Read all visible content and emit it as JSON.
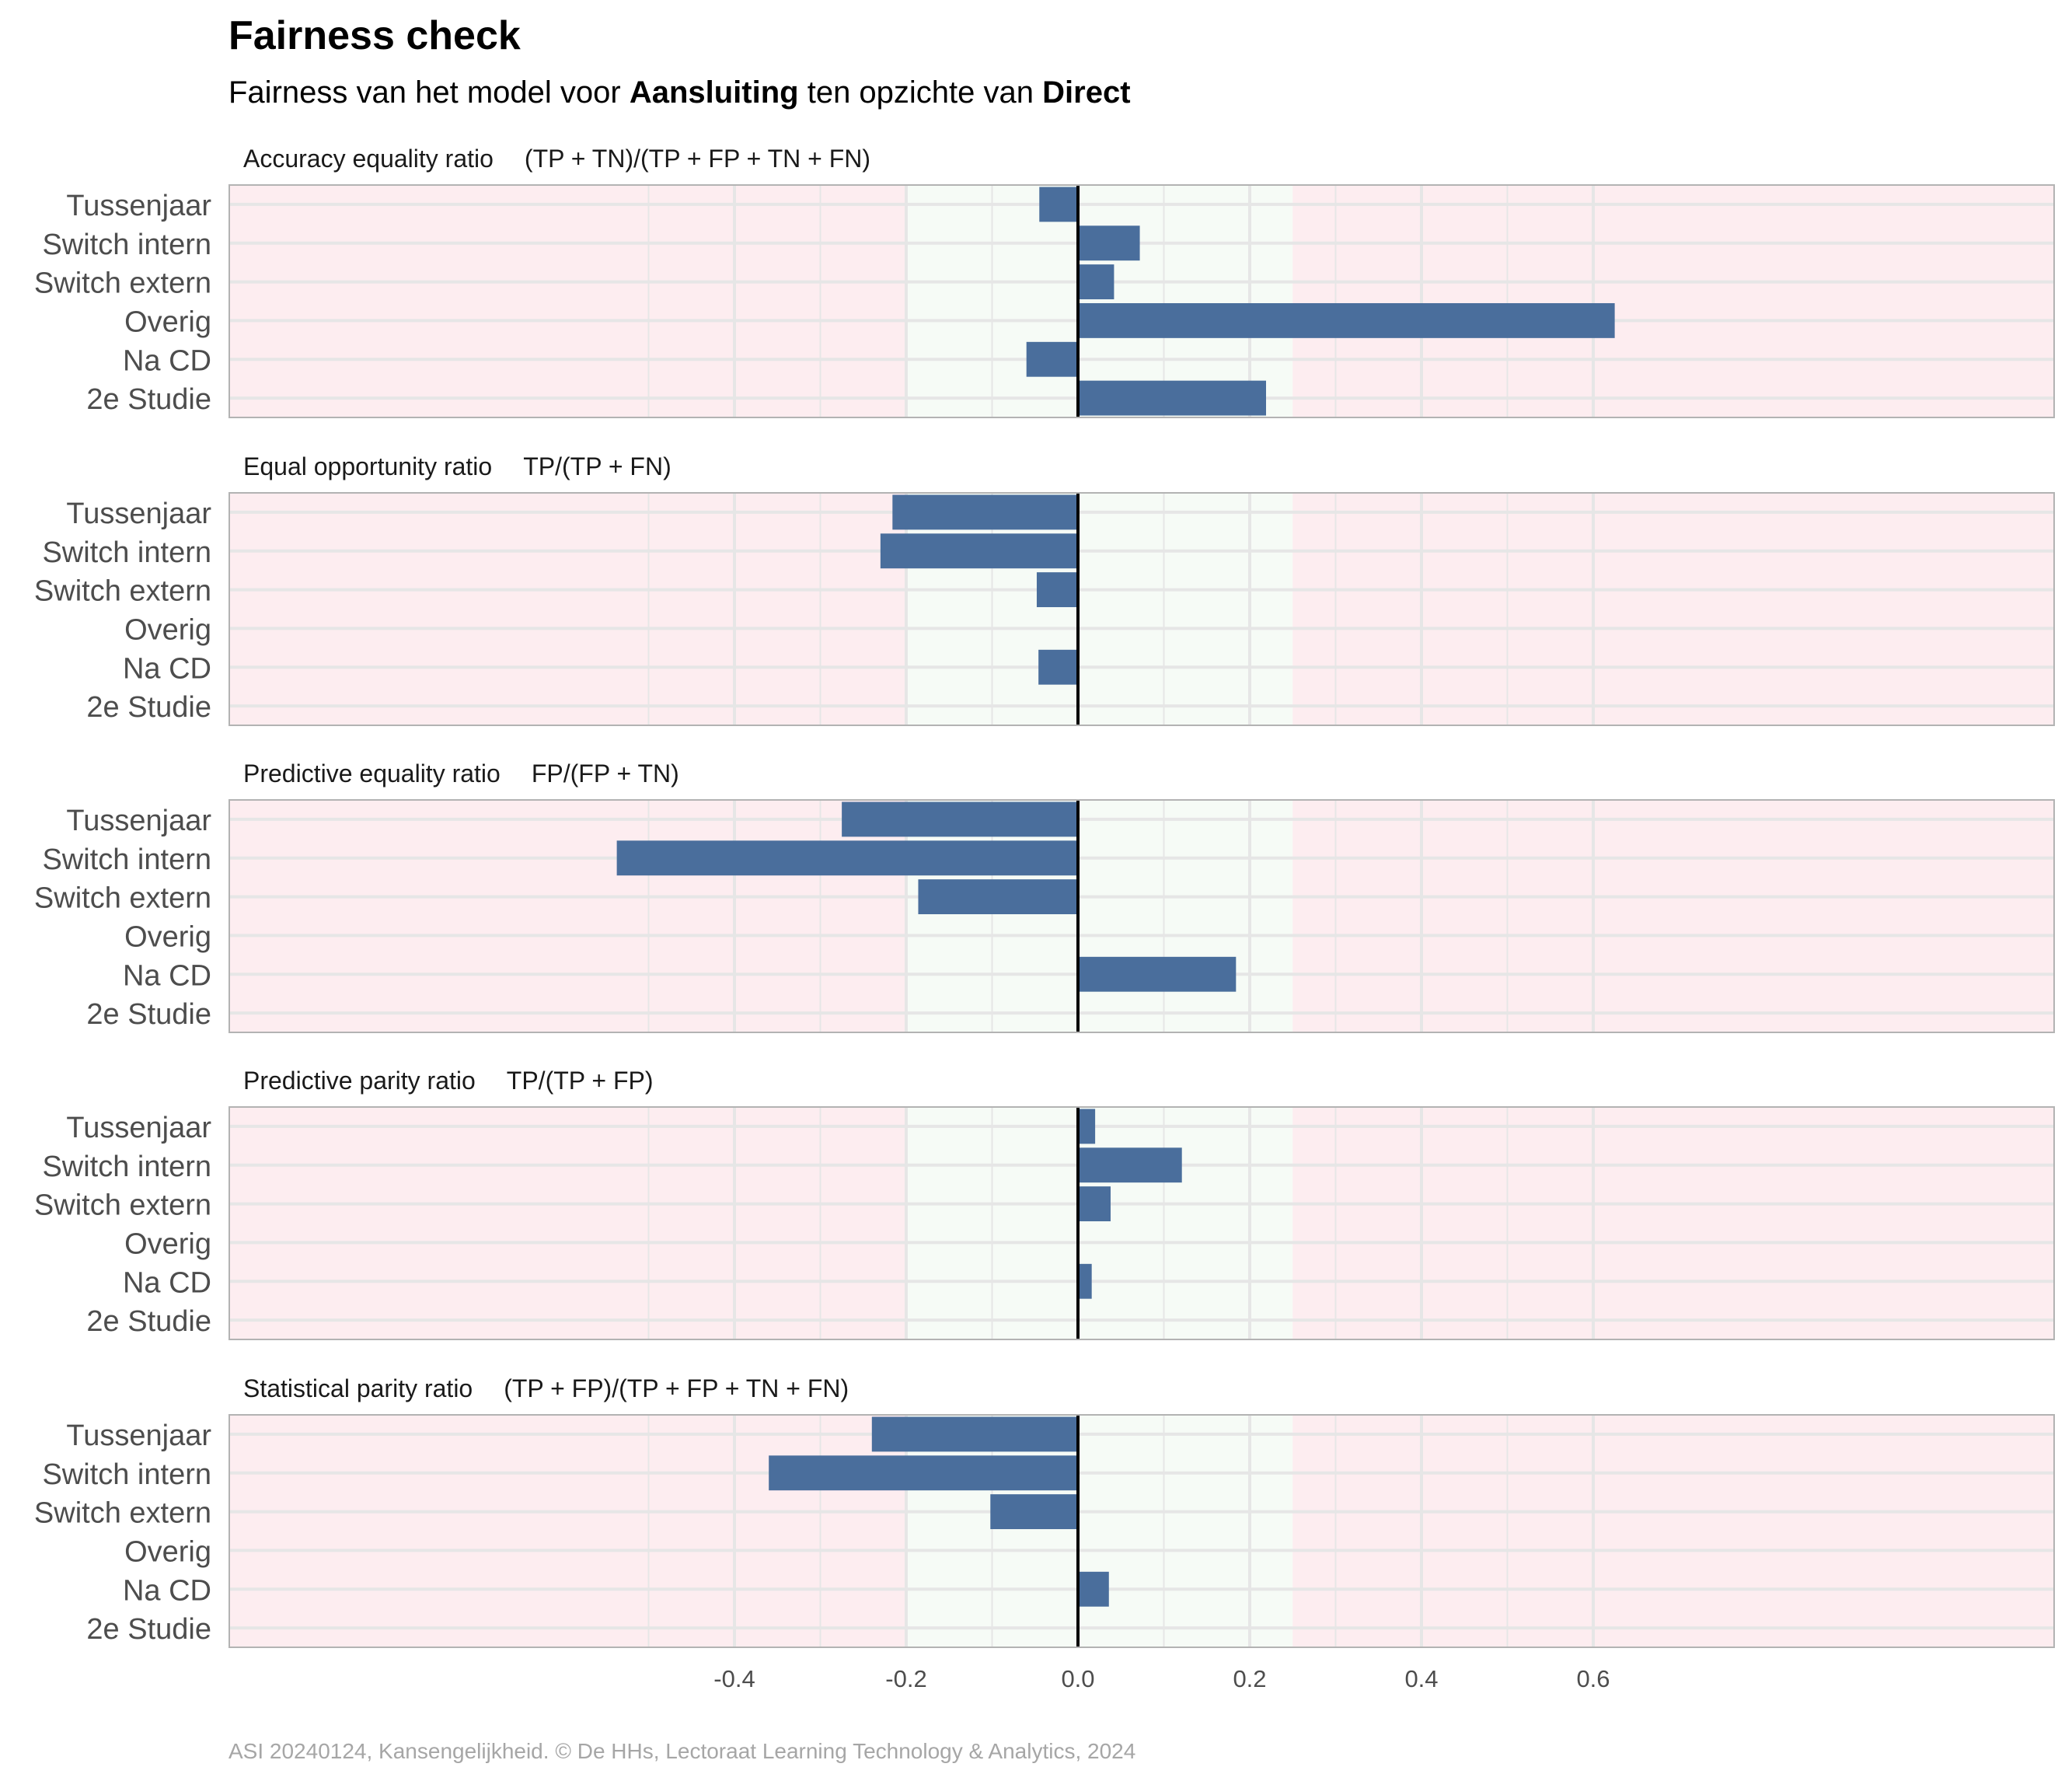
{
  "title": "Fairness check",
  "subtitle": {
    "prefix": "Fairness van het model voor ",
    "model": "Aansluiting",
    "middle": " ten opzichte van ",
    "reference": "Direct"
  },
  "caption": "ASI 20240124, Kansengelijkheid. © De HHs, Lectoraat Learning Technology & Analytics, 2024",
  "colors": {
    "bar": "#4a6e9c",
    "fair_zone": "#f6fbf6",
    "unfair_zone": "#fdedf0",
    "gridline": "#e6e6e6",
    "zero_line": "#000000",
    "panel_border": "#b3b3b3"
  },
  "chart_data": {
    "type": "bar",
    "orientation": "horizontal",
    "categories": [
      "Tussenjaar",
      "Switch intern",
      "Switch extern",
      "Overig",
      "Na CD",
      "2e Studie"
    ],
    "xlim": [
      -0.6,
      0.68
    ],
    "x_ticks": [
      -0.4,
      -0.2,
      0.0,
      0.2,
      0.4,
      0.6
    ],
    "x_tick_labels": [
      "-0.4",
      "-0.2",
      "0.0",
      "0.2",
      "0.4",
      "0.6"
    ],
    "fair_range": [
      -0.2,
      0.25
    ],
    "grid": true,
    "panels": [
      {
        "name": "Accuracy equality ratio",
        "formula": "(TP + TN)/(TP + FP + TN + FN)",
        "values": [
          -0.045,
          0.072,
          0.042,
          0.625,
          -0.06,
          0.219
        ]
      },
      {
        "name": "Equal opportunity ratio",
        "formula": "TP/(TP + FN)",
        "values": [
          -0.216,
          -0.23,
          -0.048,
          null,
          -0.046,
          null
        ]
      },
      {
        "name": "Predictive equality ratio",
        "formula": "FP/(FP + TN)",
        "values": [
          -0.275,
          -0.537,
          -0.186,
          null,
          0.184,
          null
        ]
      },
      {
        "name": "Predictive parity ratio",
        "formula": "TP/(TP + FP)",
        "values": [
          0.02,
          0.121,
          0.038,
          null,
          0.016,
          null
        ]
      },
      {
        "name": "Statistical parity ratio",
        "formula": "(TP + FP)/(TP + FP + TN + FN)",
        "values": [
          -0.24,
          -0.36,
          -0.102,
          null,
          0.036,
          null
        ]
      }
    ]
  }
}
